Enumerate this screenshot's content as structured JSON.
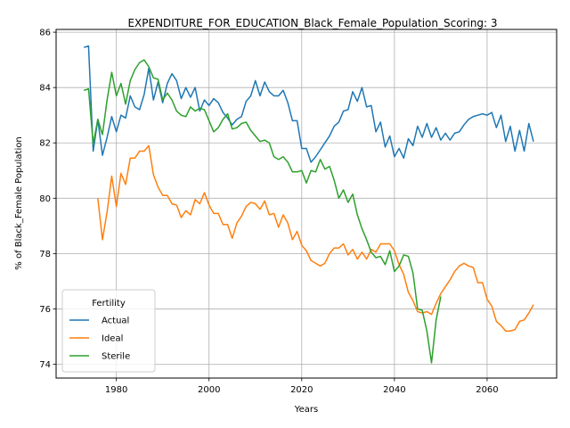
{
  "chart_data": {
    "type": "line",
    "title": "EXPENDITURE_FOR_EDUCATION_Black_Female_Population_Scoring: 3",
    "xlabel": "Years",
    "ylabel": "% of Black_Female Population",
    "xlim": [
      1967,
      2075
    ],
    "ylim": [
      73.5,
      86.1
    ],
    "xticks": [
      1980,
      2000,
      2020,
      2040,
      2060
    ],
    "yticks": [
      74,
      76,
      78,
      80,
      82,
      84,
      86
    ],
    "grid": true,
    "legend": {
      "title": "Fertility",
      "placement": "lower-left"
    },
    "series": [
      {
        "name": "Actual",
        "color": "#1f77b4",
        "points": [
          [
            1973,
            85.45
          ],
          [
            1974,
            85.5
          ],
          [
            1975,
            81.7
          ],
          [
            1976,
            82.85
          ],
          [
            1977,
            81.55
          ],
          [
            1978,
            82.2
          ],
          [
            1979,
            82.95
          ],
          [
            1980,
            82.4
          ],
          [
            1981,
            83.0
          ],
          [
            1982,
            82.9
          ],
          [
            1983,
            83.7
          ],
          [
            1984,
            83.3
          ],
          [
            1985,
            83.2
          ],
          [
            1986,
            83.75
          ],
          [
            1987,
            84.7
          ],
          [
            1988,
            83.55
          ],
          [
            1989,
            84.2
          ],
          [
            1990,
            83.45
          ],
          [
            1991,
            84.15
          ],
          [
            1992,
            84.5
          ],
          [
            1993,
            84.25
          ],
          [
            1994,
            83.6
          ],
          [
            1995,
            84.0
          ],
          [
            1996,
            83.65
          ],
          [
            1997,
            84.0
          ],
          [
            1998,
            83.15
          ],
          [
            1999,
            83.55
          ],
          [
            2000,
            83.35
          ],
          [
            2001,
            83.6
          ],
          [
            2002,
            83.45
          ],
          [
            2003,
            83.1
          ],
          [
            2004,
            82.9
          ],
          [
            2005,
            82.65
          ],
          [
            2006,
            82.85
          ],
          [
            2007,
            82.95
          ],
          [
            2008,
            83.5
          ],
          [
            2009,
            83.7
          ],
          [
            2010,
            84.25
          ],
          [
            2011,
            83.7
          ],
          [
            2012,
            84.2
          ],
          [
            2013,
            83.85
          ],
          [
            2014,
            83.7
          ],
          [
            2015,
            83.7
          ],
          [
            2016,
            83.9
          ],
          [
            2017,
            83.45
          ],
          [
            2018,
            82.8
          ],
          [
            2019,
            82.8
          ],
          [
            2020,
            81.8
          ],
          [
            2021,
            81.8
          ],
          [
            2022,
            81.3
          ],
          [
            2023,
            81.5
          ],
          [
            2024,
            81.75
          ],
          [
            2025,
            82.0
          ],
          [
            2026,
            82.25
          ],
          [
            2027,
            82.6
          ],
          [
            2028,
            82.75
          ],
          [
            2029,
            83.15
          ],
          [
            2030,
            83.2
          ],
          [
            2031,
            83.85
          ],
          [
            2032,
            83.5
          ],
          [
            2033,
            84.0
          ],
          [
            2034,
            83.3
          ],
          [
            2035,
            83.35
          ],
          [
            2036,
            82.4
          ],
          [
            2037,
            82.75
          ],
          [
            2038,
            81.85
          ],
          [
            2039,
            82.25
          ],
          [
            2040,
            81.5
          ],
          [
            2041,
            81.8
          ],
          [
            2042,
            81.45
          ],
          [
            2043,
            82.15
          ],
          [
            2044,
            81.9
          ],
          [
            2045,
            82.6
          ],
          [
            2046,
            82.2
          ],
          [
            2047,
            82.7
          ],
          [
            2048,
            82.2
          ],
          [
            2049,
            82.55
          ],
          [
            2050,
            82.1
          ],
          [
            2051,
            82.35
          ],
          [
            2052,
            82.1
          ],
          [
            2053,
            82.35
          ],
          [
            2054,
            82.4
          ],
          [
            2055,
            82.65
          ],
          [
            2056,
            82.85
          ],
          [
            2057,
            82.95
          ],
          [
            2058,
            83.0
          ],
          [
            2059,
            83.05
          ],
          [
            2060,
            83.0
          ],
          [
            2061,
            83.1
          ],
          [
            2062,
            82.55
          ],
          [
            2063,
            83.0
          ],
          [
            2064,
            82.05
          ],
          [
            2065,
            82.6
          ],
          [
            2066,
            81.7
          ],
          [
            2067,
            82.45
          ],
          [
            2068,
            81.7
          ],
          [
            2069,
            82.7
          ],
          [
            2070,
            82.05
          ]
        ]
      },
      {
        "name": "Ideal",
        "color": "#ff7f0e",
        "points": [
          [
            1976,
            80.0
          ],
          [
            1977,
            78.5
          ],
          [
            1978,
            79.5
          ],
          [
            1979,
            80.8
          ],
          [
            1980,
            79.7
          ],
          [
            1981,
            80.9
          ],
          [
            1982,
            80.5
          ],
          [
            1983,
            81.45
          ],
          [
            1984,
            81.45
          ],
          [
            1985,
            81.7
          ],
          [
            1986,
            81.7
          ],
          [
            1987,
            81.9
          ],
          [
            1988,
            80.85
          ],
          [
            1989,
            80.4
          ],
          [
            1990,
            80.1
          ],
          [
            1991,
            80.1
          ],
          [
            1992,
            79.8
          ],
          [
            1993,
            79.75
          ],
          [
            1994,
            79.3
          ],
          [
            1995,
            79.55
          ],
          [
            1996,
            79.4
          ],
          [
            1997,
            79.95
          ],
          [
            1998,
            79.8
          ],
          [
            1999,
            80.2
          ],
          [
            2000,
            79.75
          ],
          [
            2001,
            79.45
          ],
          [
            2002,
            79.45
          ],
          [
            2003,
            79.05
          ],
          [
            2004,
            79.05
          ],
          [
            2005,
            78.55
          ],
          [
            2006,
            79.1
          ],
          [
            2007,
            79.35
          ],
          [
            2008,
            79.7
          ],
          [
            2009,
            79.85
          ],
          [
            2010,
            79.8
          ],
          [
            2011,
            79.6
          ],
          [
            2012,
            79.9
          ],
          [
            2013,
            79.4
          ],
          [
            2014,
            79.45
          ],
          [
            2015,
            78.95
          ],
          [
            2016,
            79.4
          ],
          [
            2017,
            79.1
          ],
          [
            2018,
            78.5
          ],
          [
            2019,
            78.8
          ],
          [
            2020,
            78.3
          ],
          [
            2021,
            78.1
          ],
          [
            2022,
            77.75
          ],
          [
            2023,
            77.65
          ],
          [
            2024,
            77.55
          ],
          [
            2025,
            77.65
          ],
          [
            2026,
            78.0
          ],
          [
            2027,
            78.2
          ],
          [
            2028,
            78.2
          ],
          [
            2029,
            78.35
          ],
          [
            2030,
            77.95
          ],
          [
            2031,
            78.15
          ],
          [
            2032,
            77.8
          ],
          [
            2033,
            78.05
          ],
          [
            2034,
            77.8
          ],
          [
            2035,
            78.15
          ],
          [
            2036,
            78.05
          ],
          [
            2037,
            78.35
          ],
          [
            2038,
            78.35
          ],
          [
            2039,
            78.35
          ],
          [
            2040,
            78.1
          ],
          [
            2041,
            77.6
          ],
          [
            2042,
            77.25
          ],
          [
            2043,
            76.6
          ],
          [
            2044,
            76.3
          ],
          [
            2045,
            75.9
          ],
          [
            2046,
            75.85
          ],
          [
            2047,
            75.9
          ],
          [
            2048,
            75.8
          ],
          [
            2049,
            76.2
          ],
          [
            2050,
            76.55
          ],
          [
            2051,
            76.8
          ],
          [
            2052,
            77.05
          ],
          [
            2053,
            77.35
          ],
          [
            2054,
            77.55
          ],
          [
            2055,
            77.65
          ],
          [
            2056,
            77.55
          ],
          [
            2057,
            77.5
          ],
          [
            2058,
            76.95
          ],
          [
            2059,
            76.95
          ],
          [
            2060,
            76.35
          ],
          [
            2061,
            76.1
          ],
          [
            2062,
            75.55
          ],
          [
            2063,
            75.4
          ],
          [
            2064,
            75.2
          ],
          [
            2065,
            75.2
          ],
          [
            2066,
            75.25
          ],
          [
            2067,
            75.55
          ],
          [
            2068,
            75.6
          ],
          [
            2069,
            75.85
          ],
          [
            2070,
            76.15
          ]
        ]
      },
      {
        "name": "Sterile",
        "color": "#2ca02c",
        "points": [
          [
            1973,
            83.9
          ],
          [
            1974,
            83.95
          ],
          [
            1975,
            81.95
          ],
          [
            1976,
            82.85
          ],
          [
            1977,
            82.3
          ],
          [
            1978,
            83.55
          ],
          [
            1979,
            84.55
          ],
          [
            1980,
            83.7
          ],
          [
            1981,
            84.15
          ],
          [
            1982,
            83.4
          ],
          [
            1983,
            84.25
          ],
          [
            1984,
            84.65
          ],
          [
            1985,
            84.9
          ],
          [
            1986,
            85.0
          ],
          [
            1987,
            84.75
          ],
          [
            1988,
            84.35
          ],
          [
            1989,
            84.3
          ],
          [
            1990,
            83.55
          ],
          [
            1991,
            83.8
          ],
          [
            1992,
            83.55
          ],
          [
            1993,
            83.15
          ],
          [
            1994,
            83.0
          ],
          [
            1995,
            82.95
          ],
          [
            1996,
            83.3
          ],
          [
            1997,
            83.15
          ],
          [
            1998,
            83.25
          ],
          [
            1999,
            83.2
          ],
          [
            2000,
            82.8
          ],
          [
            2001,
            82.4
          ],
          [
            2002,
            82.55
          ],
          [
            2003,
            82.85
          ],
          [
            2004,
            83.05
          ],
          [
            2005,
            82.5
          ],
          [
            2006,
            82.55
          ],
          [
            2007,
            82.7
          ],
          [
            2008,
            82.75
          ],
          [
            2009,
            82.45
          ],
          [
            2010,
            82.25
          ],
          [
            2011,
            82.05
          ],
          [
            2012,
            82.1
          ],
          [
            2013,
            82.0
          ],
          [
            2014,
            81.5
          ],
          [
            2015,
            81.4
          ],
          [
            2016,
            81.5
          ],
          [
            2017,
            81.3
          ],
          [
            2018,
            80.95
          ],
          [
            2019,
            80.95
          ],
          [
            2020,
            81.0
          ],
          [
            2021,
            80.55
          ],
          [
            2022,
            81.0
          ],
          [
            2023,
            80.95
          ],
          [
            2024,
            81.4
          ],
          [
            2025,
            81.05
          ],
          [
            2026,
            81.15
          ],
          [
            2027,
            80.65
          ],
          [
            2028,
            80.0
          ],
          [
            2029,
            80.3
          ],
          [
            2030,
            79.85
          ],
          [
            2031,
            80.15
          ],
          [
            2032,
            79.4
          ],
          [
            2033,
            78.9
          ],
          [
            2034,
            78.5
          ],
          [
            2035,
            78.05
          ],
          [
            2036,
            77.85
          ],
          [
            2037,
            77.9
          ],
          [
            2038,
            77.6
          ],
          [
            2039,
            78.1
          ],
          [
            2040,
            77.35
          ],
          [
            2041,
            77.55
          ],
          [
            2042,
            77.95
          ],
          [
            2043,
            77.9
          ],
          [
            2044,
            77.3
          ],
          [
            2045,
            76.0
          ],
          [
            2046,
            75.95
          ],
          [
            2047,
            75.2
          ],
          [
            2048,
            74.05
          ],
          [
            2049,
            75.6
          ],
          [
            2050,
            76.45
          ]
        ]
      }
    ]
  }
}
